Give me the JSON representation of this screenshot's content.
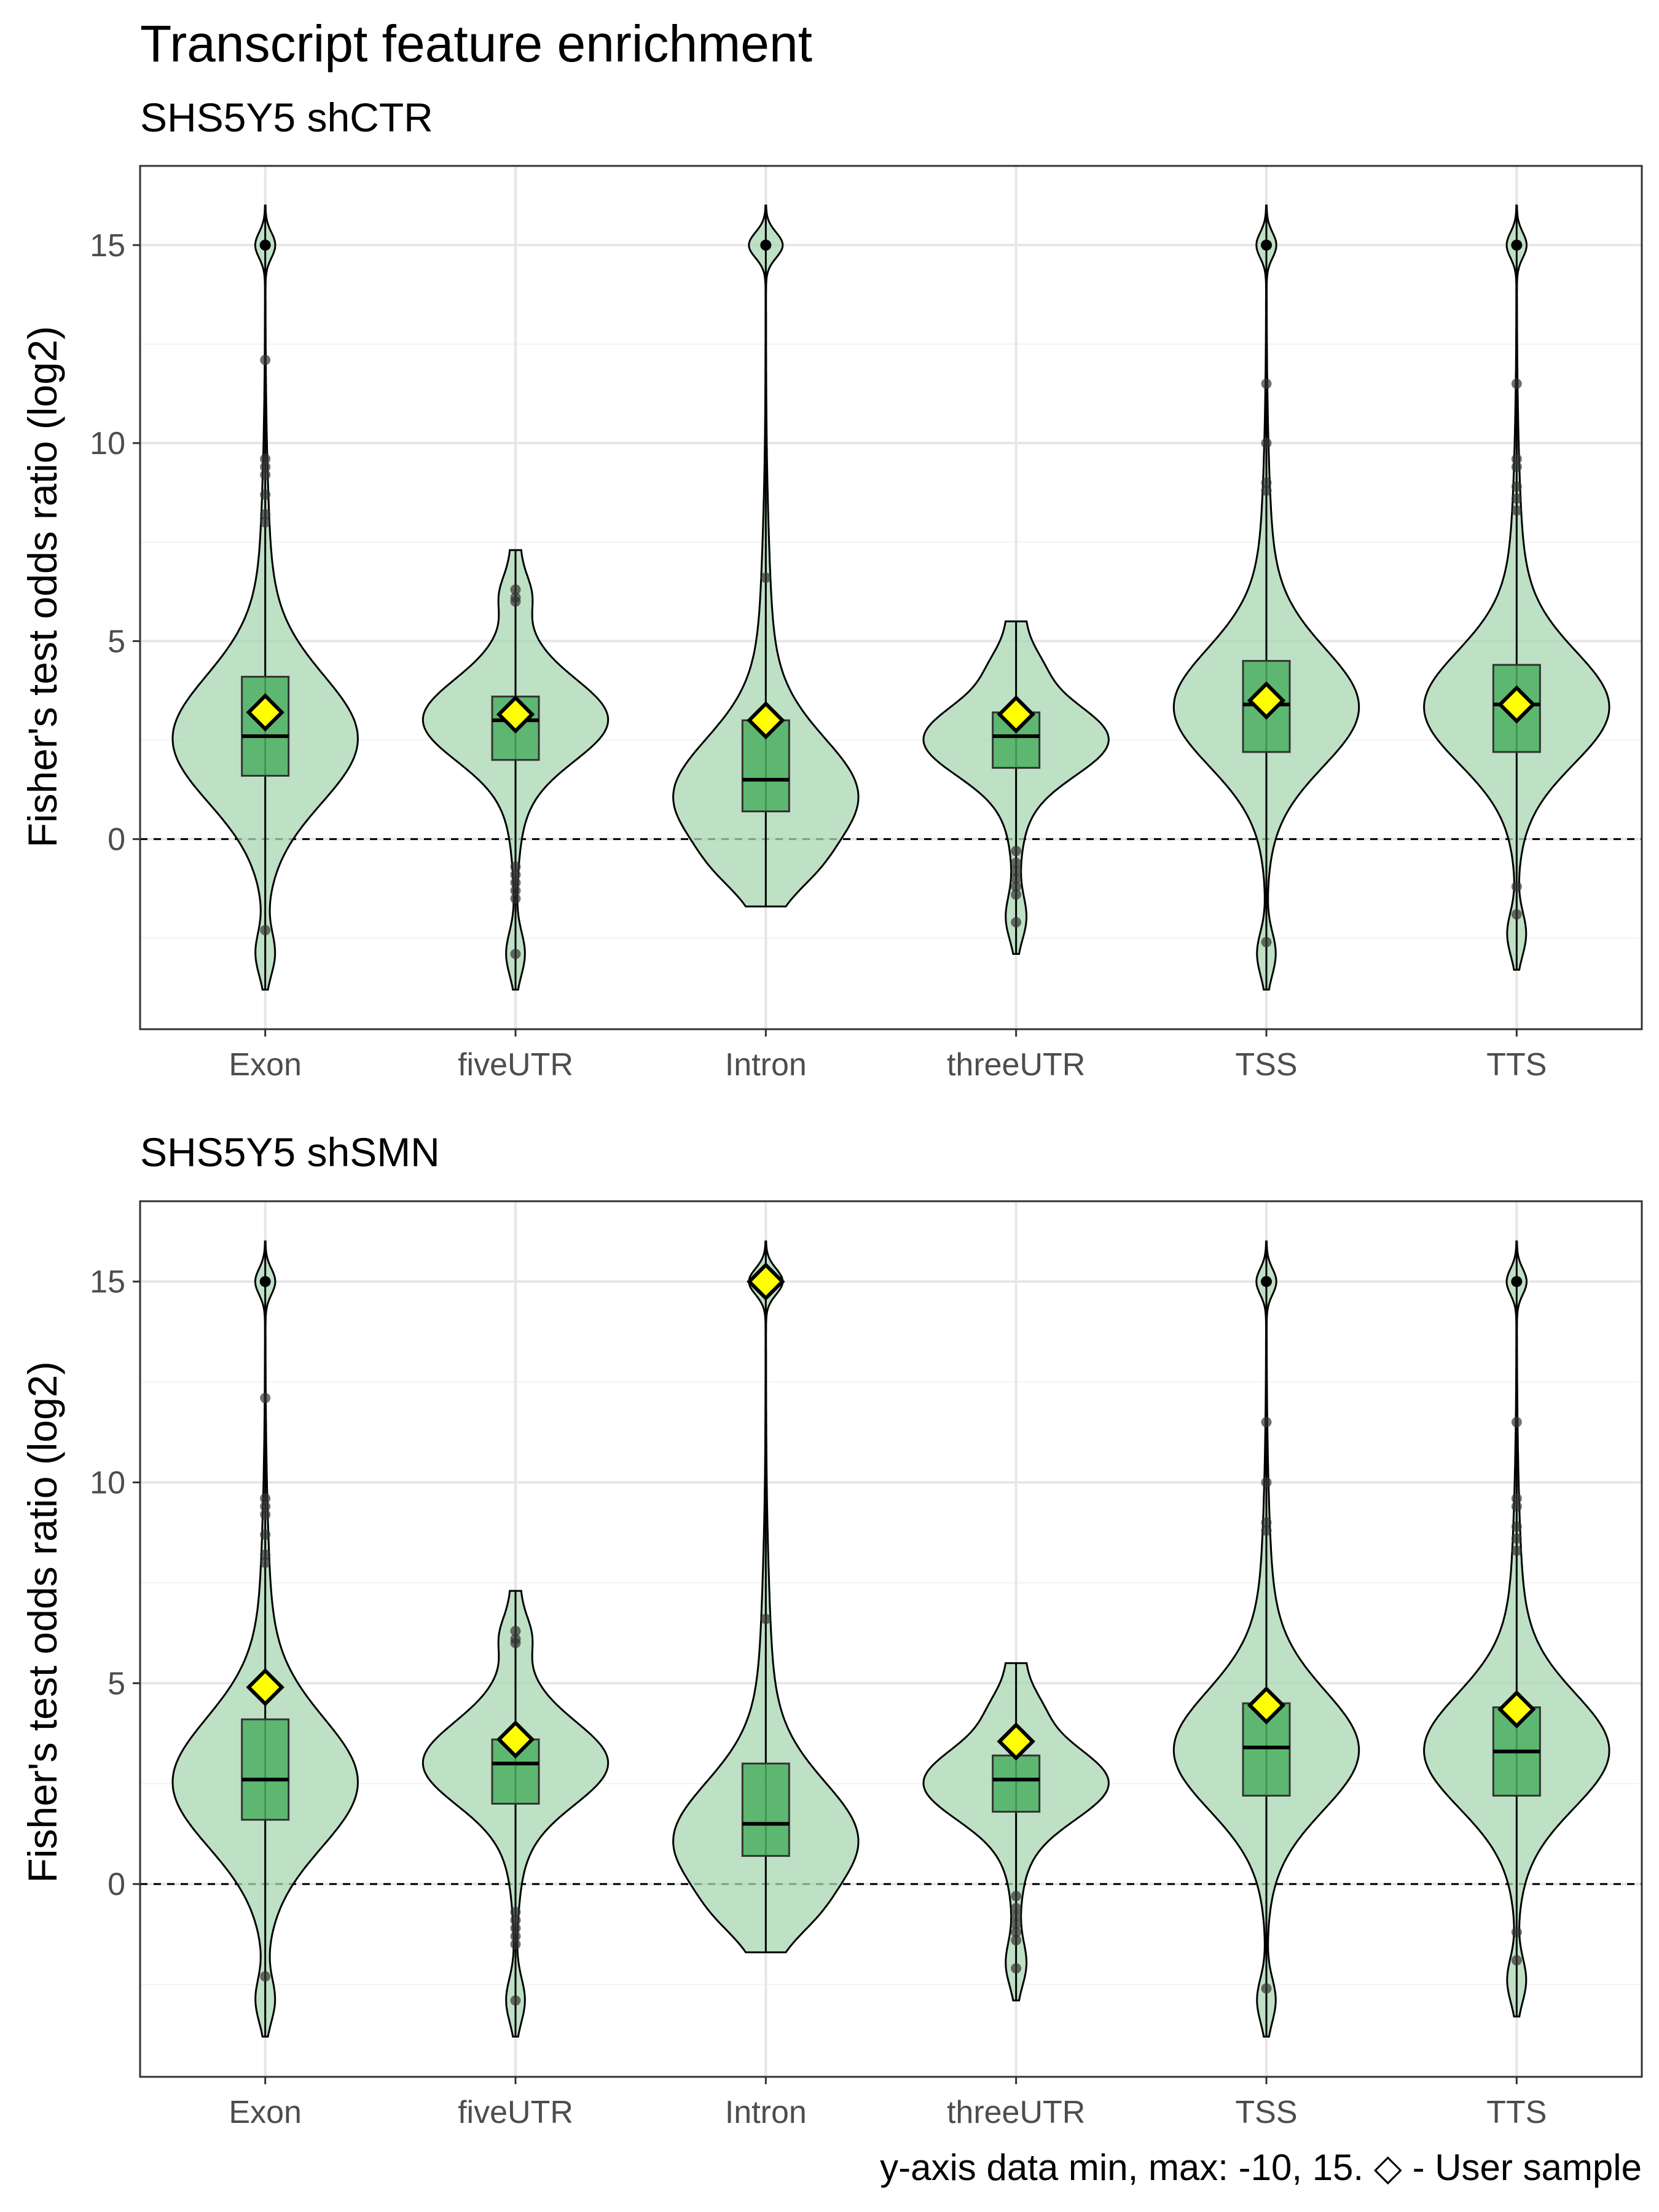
{
  "title": "Transcript feature enrichment",
  "caption": "y-axis data min, max: -10, 15. ◇ - User sample",
  "colors": {
    "violin_fill": "#a8d5b0",
    "box_fill": "#4caf63",
    "marker_fill": "#ffff00",
    "outlier": "#333333",
    "grid_major": "#e6e6e6",
    "grid_minor": "#f2f2f2",
    "panel_border": "#333333"
  },
  "chart_data": [
    {
      "type": "violin",
      "title": "SHS5Y5 shCTR",
      "ylabel": "Fisher's test odds ratio (log2)",
      "xlabel": "",
      "ylim": [
        -4.8,
        17
      ],
      "yticks": [
        0,
        5,
        10,
        15
      ],
      "reference_line": 0,
      "grid": true,
      "categories": [
        "Exon",
        "fiveUTR",
        "Intron",
        "threeUTR",
        "TSS",
        "TTS"
      ],
      "violins": [
        {
          "min": -3.8,
          "max": 16,
          "q1": 1.6,
          "median": 2.6,
          "q3": 4.1,
          "whisker_low": -1.2,
          "whisker_high": 7.6,
          "peak": 2.5,
          "user": 3.2,
          "outliers": [
            15,
            12.1,
            9.6,
            9.4,
            9.2,
            8.7,
            8.2,
            8.0,
            -2.3
          ]
        },
        {
          "min": -3.8,
          "max": 7.3,
          "q1": 2.0,
          "median": 3.0,
          "q3": 3.6,
          "whisker_low": -0.5,
          "whisker_high": 5.8,
          "peak": 3.0,
          "user": 3.15,
          "outliers": [
            6.3,
            6.1,
            6.0,
            -0.7,
            -0.9,
            -1.1,
            -1.3,
            -1.5,
            -2.9
          ]
        },
        {
          "min": -1.7,
          "max": 16,
          "q1": 0.7,
          "median": 1.5,
          "q3": 3.0,
          "whisker_low": -0.3,
          "whisker_high": 5.2,
          "peak": 1.0,
          "user": 3.0,
          "outliers": [
            15,
            6.6
          ]
        },
        {
          "min": -2.9,
          "max": 5.5,
          "q1": 1.8,
          "median": 2.6,
          "q3": 3.2,
          "whisker_low": -0.2,
          "whisker_high": 4.6,
          "peak": 2.5,
          "user": 3.15,
          "outliers": [
            -0.3,
            -0.6,
            -0.8,
            -1.0,
            -1.2,
            -1.4,
            -2.1
          ]
        },
        {
          "min": -3.8,
          "max": 16,
          "q1": 2.2,
          "median": 3.4,
          "q3": 4.5,
          "whisker_low": -0.9,
          "whisker_high": 7.9,
          "peak": 3.3,
          "user": 3.5,
          "outliers": [
            15,
            11.5,
            10.0,
            9.0,
            8.8,
            -2.6
          ]
        },
        {
          "min": -3.3,
          "max": 16,
          "q1": 2.2,
          "median": 3.4,
          "q3": 4.4,
          "whisker_low": -0.8,
          "whisker_high": 7.4,
          "peak": 3.3,
          "user": 3.4,
          "outliers": [
            15,
            11.5,
            9.6,
            9.4,
            8.9,
            8.6,
            8.3,
            -1.2,
            -1.9
          ]
        }
      ]
    },
    {
      "type": "violin",
      "title": "SHS5Y5 shSMN",
      "ylabel": "Fisher's test odds ratio (log2)",
      "xlabel": "",
      "ylim": [
        -4.8,
        17
      ],
      "yticks": [
        0,
        5,
        10,
        15
      ],
      "reference_line": 0,
      "grid": true,
      "categories": [
        "Exon",
        "fiveUTR",
        "Intron",
        "threeUTR",
        "TSS",
        "TTS"
      ],
      "violins": [
        {
          "min": -3.8,
          "max": 16,
          "q1": 1.6,
          "median": 2.6,
          "q3": 4.1,
          "whisker_low": -1.2,
          "whisker_high": 7.6,
          "peak": 2.5,
          "user": 4.9,
          "outliers": [
            15,
            12.1,
            9.6,
            9.4,
            9.2,
            8.7,
            8.2,
            8.0,
            -2.3
          ]
        },
        {
          "min": -3.8,
          "max": 7.3,
          "q1": 2.0,
          "median": 3.0,
          "q3": 3.6,
          "whisker_low": -0.5,
          "whisker_high": 5.8,
          "peak": 3.0,
          "user": 3.6,
          "outliers": [
            6.3,
            6.1,
            6.0,
            -0.7,
            -0.9,
            -1.1,
            -1.3,
            -1.5,
            -2.9
          ]
        },
        {
          "min": -1.7,
          "max": 16,
          "q1": 0.7,
          "median": 1.5,
          "q3": 3.0,
          "whisker_low": -0.3,
          "whisker_high": 5.2,
          "peak": 1.0,
          "user": 15.0,
          "outliers": [
            15,
            6.6
          ]
        },
        {
          "min": -2.9,
          "max": 5.5,
          "q1": 1.8,
          "median": 2.6,
          "q3": 3.2,
          "whisker_low": -0.2,
          "whisker_high": 4.6,
          "peak": 2.5,
          "user": 3.55,
          "outliers": [
            -0.3,
            -0.6,
            -0.8,
            -1.0,
            -1.2,
            -1.4,
            -2.1
          ]
        },
        {
          "min": -3.8,
          "max": 16,
          "q1": 2.2,
          "median": 3.4,
          "q3": 4.5,
          "whisker_low": -0.9,
          "whisker_high": 7.9,
          "peak": 3.3,
          "user": 4.45,
          "outliers": [
            15,
            11.5,
            10.0,
            9.0,
            8.8,
            -2.6
          ]
        },
        {
          "min": -3.3,
          "max": 16,
          "q1": 2.2,
          "median": 3.3,
          "q3": 4.4,
          "whisker_low": -0.8,
          "whisker_high": 7.4,
          "peak": 3.3,
          "user": 4.35,
          "outliers": [
            15,
            11.5,
            9.6,
            9.4,
            8.9,
            8.6,
            8.3,
            -1.2,
            -1.9
          ]
        }
      ]
    }
  ]
}
